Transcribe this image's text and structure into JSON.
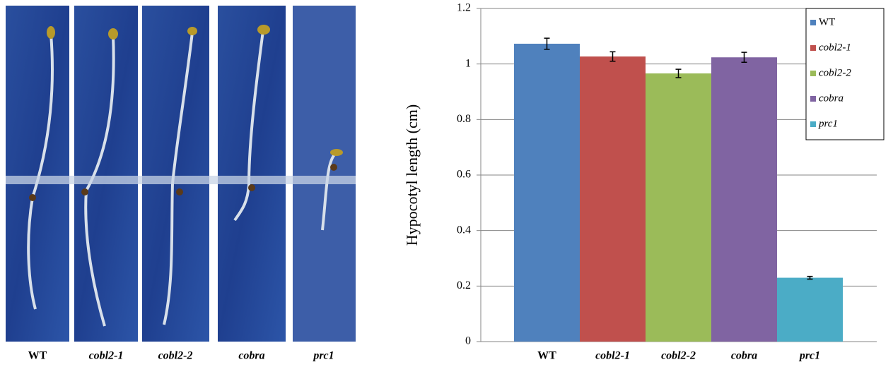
{
  "panel_labels": [
    "WT",
    "cobl2-1",
    "cobl2-2",
    "cobra",
    "prc1"
  ],
  "chart_data": {
    "type": "bar",
    "y_label": "Hypocotyl length (cm)",
    "categories": [
      "WT",
      "cobl2-1",
      "cobl2-2",
      "cobra",
      "prc1"
    ],
    "values": [
      1.073,
      1.027,
      0.966,
      1.024,
      0.23
    ],
    "errors": [
      0.02,
      0.017,
      0.015,
      0.018,
      0.005
    ],
    "colors": [
      "#4f81bd",
      "#c0504d",
      "#9bbb59",
      "#8064a2",
      "#4bacc6"
    ],
    "ylim": [
      0,
      1.2
    ],
    "yticks": [
      0,
      0.2,
      0.4,
      0.6,
      0.8,
      1,
      1.2
    ],
    "grid": true,
    "legend": "upper right"
  }
}
